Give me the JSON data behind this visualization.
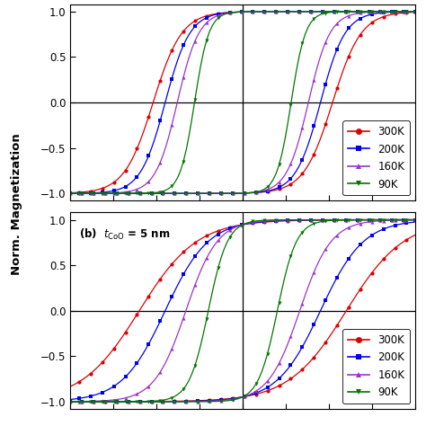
{
  "panel_a": {
    "label": "",
    "coercive_fields_up": {
      "300K": 0.52,
      "200K": 0.45,
      "160K": 0.38,
      "90K": 0.28
    },
    "coercive_fields_dn": {
      "300K": 0.52,
      "200K": 0.45,
      "160K": 0.38,
      "90K": 0.28
    },
    "slope_up": {
      "300K": 6.0,
      "200K": 7.0,
      "160K": 8.0,
      "90K": 12.0
    },
    "slope_dn": {
      "300K": 6.0,
      "200K": 7.0,
      "160K": 8.0,
      "90K": 12.0
    },
    "ylim": [
      null,
      null
    ],
    "show_top": false
  },
  "panel_b": {
    "label": "(b)",
    "annotation": "t_{CoO} = 5 nm",
    "coercive_fields_up": {
      "300K": 0.6,
      "200K": 0.45,
      "160K": 0.33,
      "90K": 0.2
    },
    "coercive_fields_dn": {
      "300K": 0.6,
      "200K": 0.45,
      "160K": 0.33,
      "90K": 0.2
    },
    "slope_up": {
      "300K": 3.0,
      "200K": 4.0,
      "160K": 5.5,
      "90K": 9.0
    },
    "slope_dn": {
      "300K": 3.0,
      "200K": 4.0,
      "160K": 5.5,
      "90K": 9.0
    }
  },
  "colors": {
    "300K": "#dd0000",
    "200K": "#0000ee",
    "160K": "#9933cc",
    "90K": "#007700"
  },
  "markers": {
    "300K": "o",
    "200K": "s",
    "160K": "^",
    "90K": "v"
  },
  "temperatures": [
    "300K",
    "200K",
    "160K",
    "90K"
  ],
  "ylabel": "Norm. Magnetization",
  "xlim": [
    -1.0,
    1.0
  ],
  "ylim_a": [
    -1.08,
    1.08
  ],
  "ylim_b": [
    -1.08,
    1.08
  ],
  "yticks": [
    -1,
    -0.5,
    0,
    0.5,
    1
  ],
  "n_points": 120
}
